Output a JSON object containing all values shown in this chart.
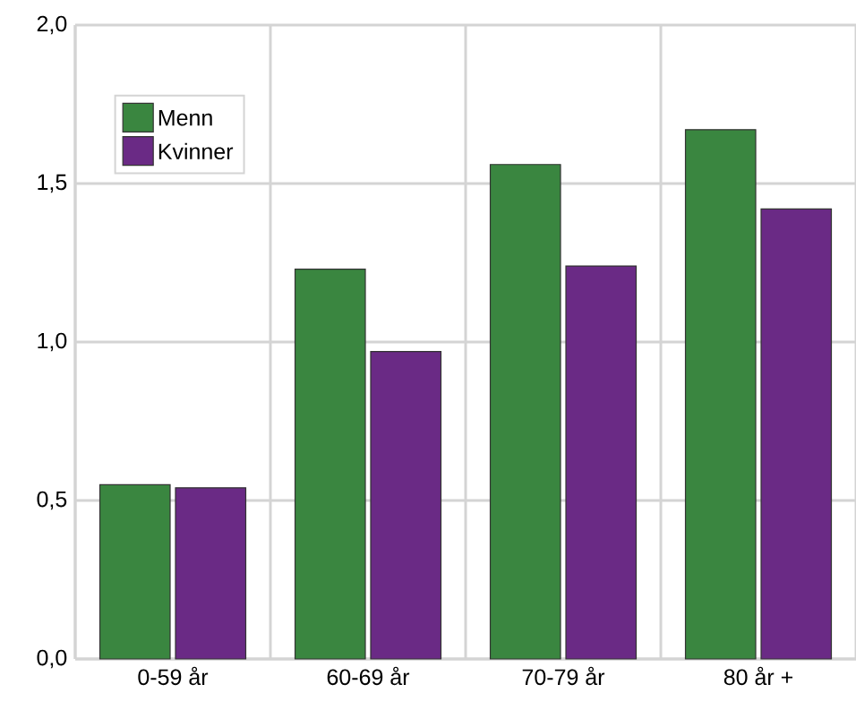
{
  "chart_data": {
    "type": "bar",
    "categories": [
      "0-59 år",
      "60-69 år",
      "70-79 år",
      "80 år +"
    ],
    "series": [
      {
        "name": "Menn",
        "color": "#3a8640",
        "values": [
          0.55,
          1.23,
          1.56,
          1.67
        ]
      },
      {
        "name": "Kvinner",
        "color": "#6a2a85",
        "values": [
          0.54,
          0.97,
          1.24,
          1.42
        ]
      }
    ],
    "ylim": [
      0,
      2
    ],
    "yticks": [
      {
        "value": 0,
        "label": "0,0"
      },
      {
        "value": 0.5,
        "label": "0,5"
      },
      {
        "value": 1,
        "label": "1,0"
      },
      {
        "value": 1.5,
        "label": "1,5"
      },
      {
        "value": 2,
        "label": "2,0"
      }
    ],
    "grid": true,
    "legend": "top left"
  }
}
